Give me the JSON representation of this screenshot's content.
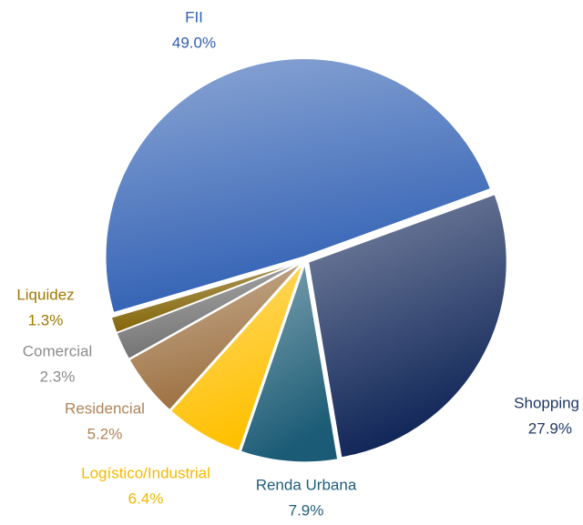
{
  "chart_data": {
    "type": "pie",
    "categories": [
      "Shopping",
      "Renda Urbana",
      "Logístico/Industrial",
      "Residencial",
      "Comercial",
      "Liquidez",
      "FII"
    ],
    "values": [
      27.9,
      7.9,
      6.4,
      5.2,
      2.3,
      1.3,
      49.0
    ],
    "value_labels": [
      "27.9%",
      "7.9%",
      "6.4%",
      "5.2%",
      "2.3%",
      "1.3%",
      "49.0%"
    ],
    "colors": [
      "#0f2557",
      "#1b5b75",
      "#ffc000",
      "#9c7040",
      "#707070",
      "#7f6000",
      "#2f5fb3"
    ],
    "label_colors": [
      "#1f3864",
      "#1f5f7a",
      "#f5b800",
      "#b08458",
      "#8c8c8c",
      "#a07800",
      "#2f5fb3"
    ]
  }
}
